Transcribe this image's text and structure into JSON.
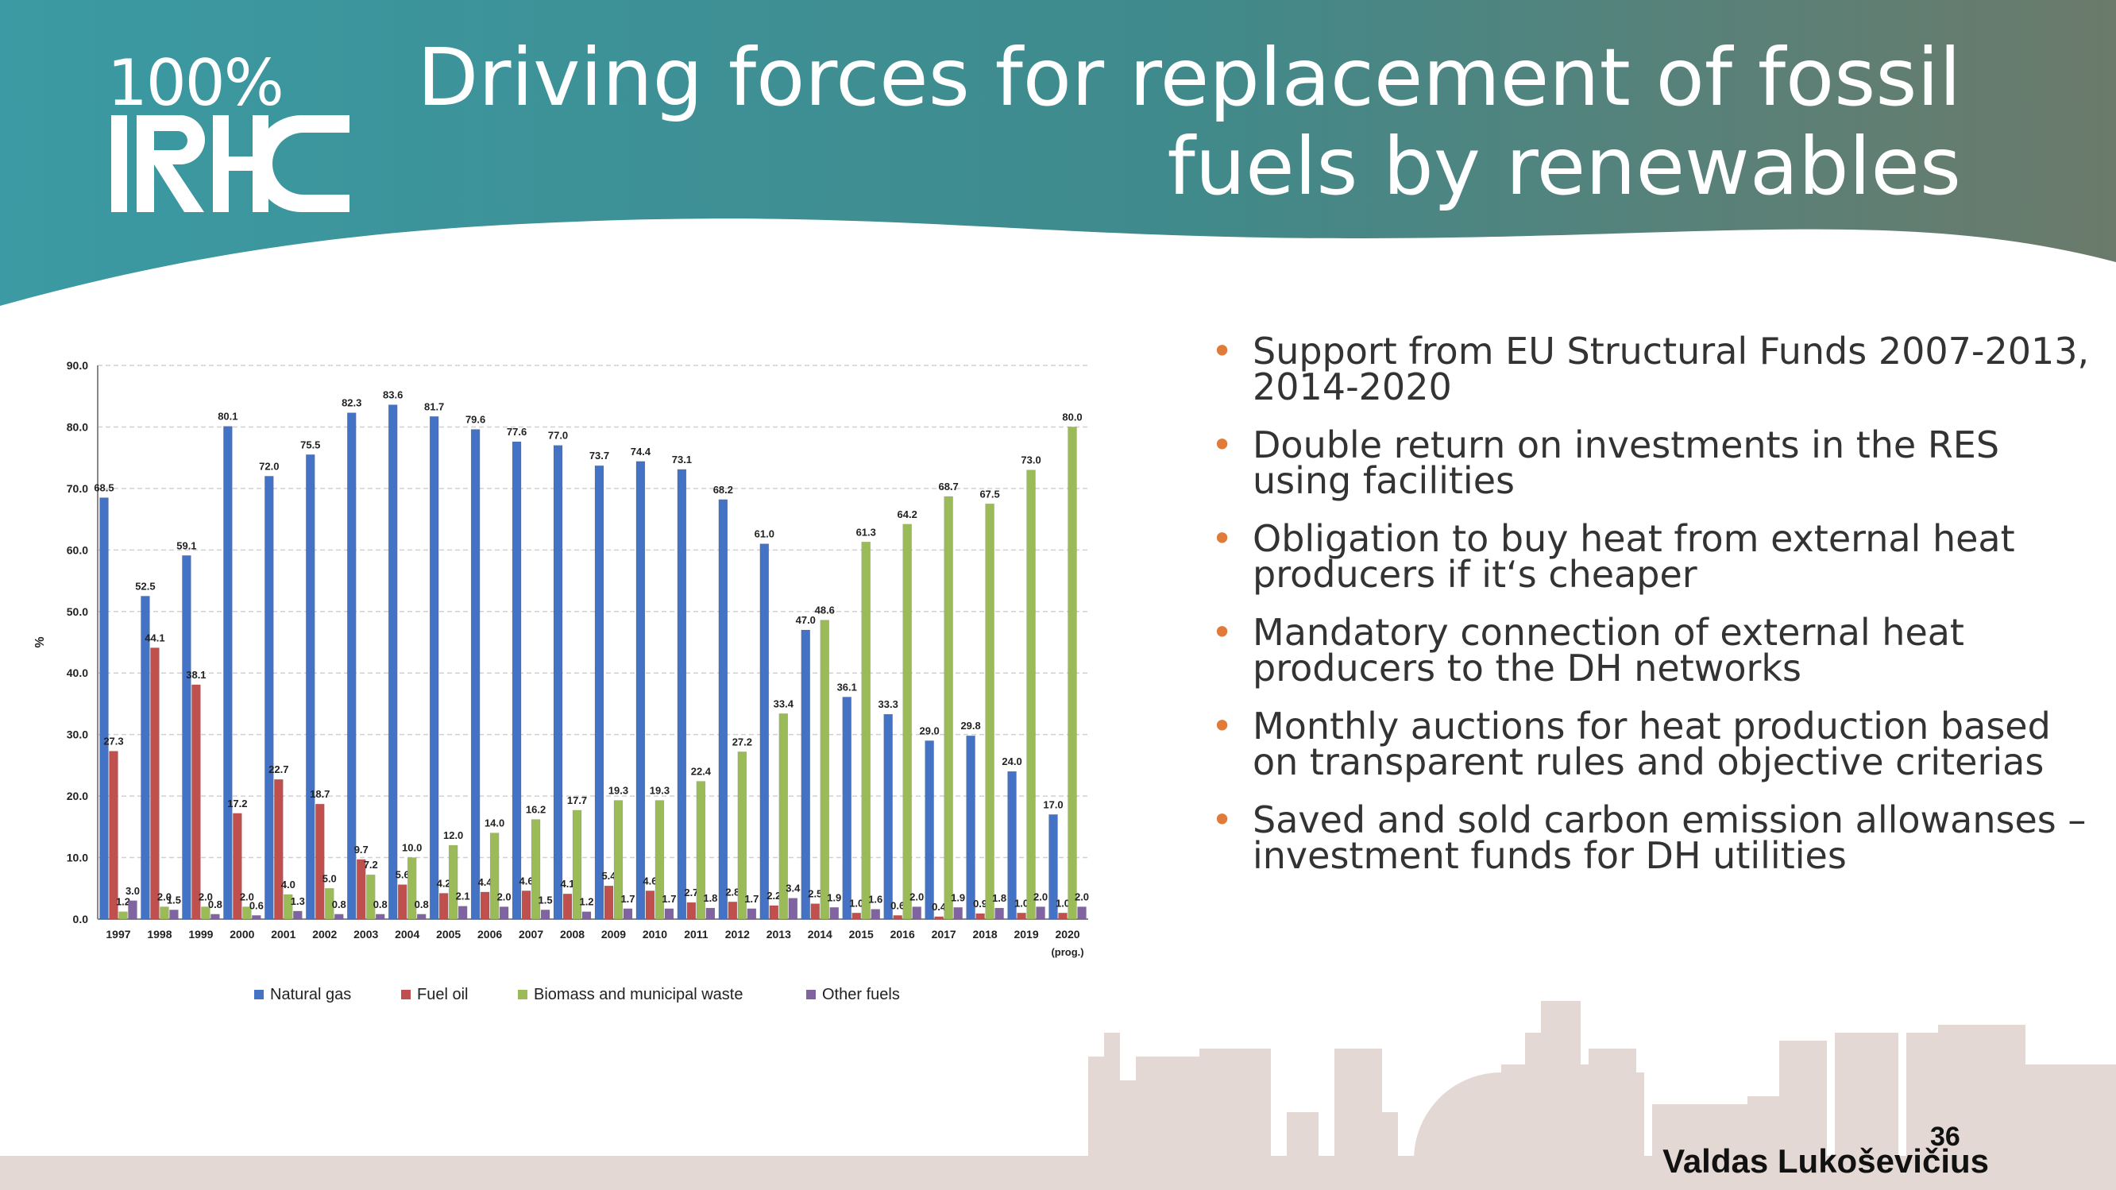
{
  "logo": {
    "top": "100%",
    "bottom": "IRHC"
  },
  "title": "Driving forces for replacement of fossil fuels by renewables",
  "bullets": [
    "Support from EU Structural Funds 2007-2013, 2014-2020",
    "Double return on investments in the RES using facilities",
    "Obligation to buy heat from external heat producers if it‘s cheaper",
    "Mandatory connection of external heat producers to the DH networks",
    "Monthly auctions for heat production based on transparent rules and objective criterias",
    "Saved and sold carbon emission allowanses – investment funds for DH utilities"
  ],
  "footer": {
    "author": "Valdas Lukoševičius",
    "page": "36"
  },
  "colors": {
    "header_left": "#3b9aa3",
    "header_right": "#6b7a6a",
    "bullet": "#e07b39",
    "skyline": "#e3d8d3"
  },
  "chart_data": {
    "type": "bar",
    "ylabel": "%",
    "ylim": [
      0,
      90
    ],
    "yticks": [
      "0.0",
      "10.0",
      "20.0",
      "30.0",
      "40.0",
      "50.0",
      "60.0",
      "70.0",
      "80.0",
      "90.0"
    ],
    "grid": true,
    "legend_position": "bottom",
    "categories": [
      "1997",
      "1998",
      "1999",
      "2000",
      "2001",
      "2002",
      "2003",
      "2004",
      "2005",
      "2006",
      "2007",
      "2008",
      "2009",
      "2010",
      "2011",
      "2012",
      "2013",
      "2014",
      "2015",
      "2016",
      "2017",
      "2018",
      "2019",
      "2020"
    ],
    "last_category_note": "(prog.)",
    "series": [
      {
        "name": "Natural gas",
        "color": "#4472c4",
        "values": [
          68.5,
          52.5,
          59.1,
          80.1,
          72.0,
          75.5,
          82.3,
          83.6,
          81.7,
          79.6,
          77.6,
          77.0,
          73.7,
          74.4,
          73.1,
          68.2,
          61.0,
          47.0,
          36.1,
          33.3,
          29.0,
          29.8,
          24.0,
          17.0
        ],
        "labels": [
          "68.5",
          "52.5",
          "59.1",
          "80.1",
          "72.0",
          "75.5",
          "82.3",
          "83.6",
          "81.7",
          "79.6",
          "77.6",
          "77.0",
          "73.7",
          "74.4",
          "73.1",
          "68.2",
          "61.0",
          "47.0",
          "36.1",
          "33.3",
          "29.0",
          "29.8",
          "24.0",
          "17.0"
        ]
      },
      {
        "name": "Fuel oil",
        "color": "#c0504d",
        "values": [
          27.3,
          44.1,
          38.1,
          17.2,
          22.7,
          18.7,
          9.7,
          5.6,
          4.2,
          4.4,
          4.6,
          4.1,
          5.4,
          4.6,
          2.7,
          2.8,
          2.2,
          2.5,
          1.0,
          0.6,
          0.4,
          0.9,
          1.0,
          1.0
        ],
        "labels": [
          "27.3",
          "44.1",
          "38.1",
          "17.2",
          "22.7",
          "18.7",
          "9.7",
          "5.6",
          "4.2",
          "4.4",
          "4.6",
          "4.1",
          "5.4",
          "4.6",
          "2.7",
          "2.8",
          "2.2",
          "2.5",
          "1.0",
          "0.6",
          "0.4",
          "0.9",
          "1.0",
          "1.0"
        ]
      },
      {
        "name": "Biomass and municipal waste",
        "color": "#9bbb59",
        "values": [
          1.2,
          2.0,
          2.0,
          2.0,
          4.0,
          5.0,
          7.2,
          10.0,
          12.0,
          14.0,
          16.2,
          17.7,
          19.3,
          19.3,
          22.4,
          27.2,
          33.4,
          48.6,
          61.3,
          64.2,
          68.7,
          67.5,
          73.0,
          80.0
        ],
        "labels": [
          "1.2",
          "2.0",
          "2.0",
          "2.0",
          "4.0",
          "5.0",
          "7.2",
          "10.0",
          "12.0",
          "14.0",
          "16.2",
          "17.7",
          "19.3",
          "19.3",
          "22.4",
          "27.2",
          "33.4",
          "48.6",
          "61.3",
          "64.2",
          "68.7",
          "67.5",
          "73.0",
          "80.0"
        ]
      },
      {
        "name": "Other fuels",
        "color": "#8064a2",
        "values": [
          3.0,
          1.5,
          0.8,
          0.6,
          1.3,
          0.8,
          0.8,
          0.8,
          2.1,
          2.0,
          1.5,
          1.2,
          1.7,
          1.7,
          1.8,
          1.7,
          3.4,
          1.9,
          1.6,
          2.0,
          1.9,
          1.8,
          2.0,
          2.0
        ],
        "labels": [
          "3.0",
          "1.5",
          "0.8",
          "0.6",
          "1.3",
          "0.8",
          "0.8",
          "0.8",
          "2.1",
          "2.0",
          "1.5",
          "1.2",
          "1.7",
          "1.7",
          "1.8",
          "1.7",
          "3.4",
          "1.9",
          "1.6",
          "2.0",
          "1.9",
          "1.8",
          "2.0",
          "2.0"
        ]
      }
    ]
  }
}
